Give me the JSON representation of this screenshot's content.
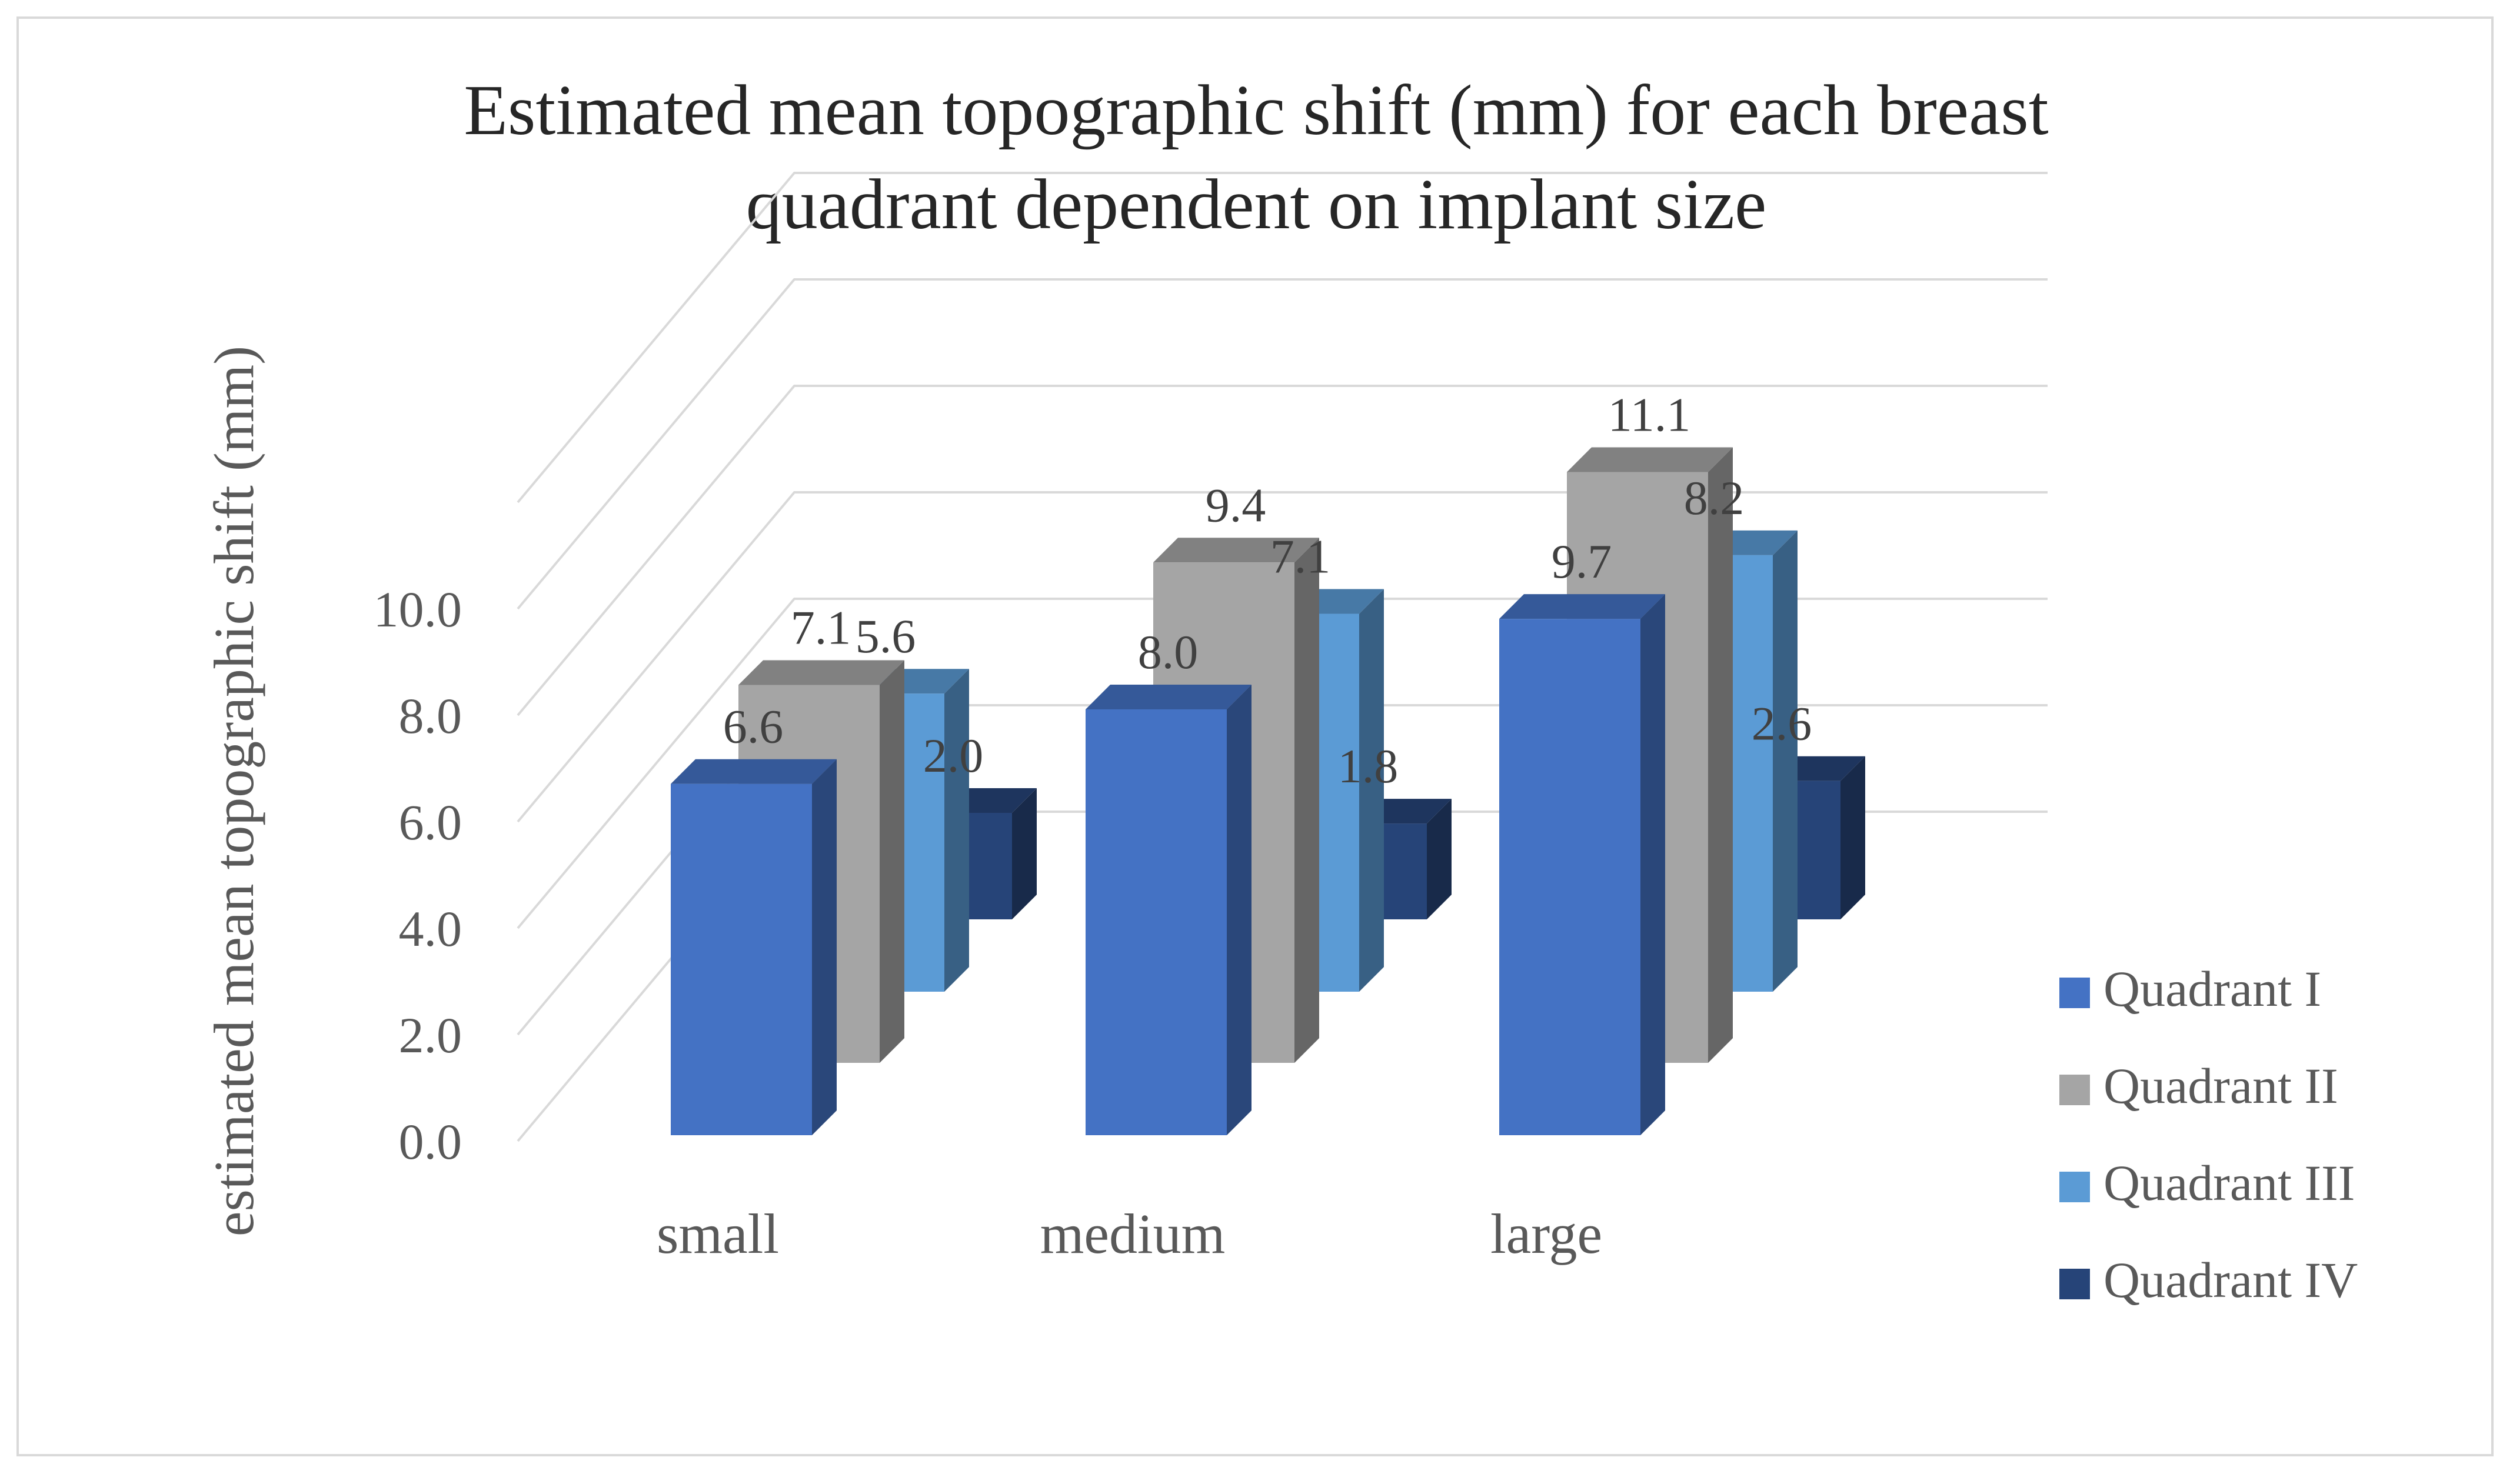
{
  "chart_data": {
    "type": "bar",
    "title": "Estimated mean topographic shift (mm) for each breast quadrant dependent on implant size",
    "title_lines": [
      "Estimated mean topographic shift (mm) for each breast",
      "quadrant dependent on implant size"
    ],
    "xlabel": "",
    "ylabel": "estimated mean topographic shift (mm)",
    "categories": [
      "small",
      "medium",
      "large"
    ],
    "series": [
      {
        "name": "Quadrant I",
        "values": [
          6.6,
          8.0,
          9.7
        ],
        "labels": [
          "6.6",
          "8.0",
          "9.7"
        ],
        "color": "#4472c4"
      },
      {
        "name": "Quadrant II",
        "values": [
          7.1,
          9.4,
          11.1
        ],
        "labels": [
          "7.1",
          "9.4",
          "11.1"
        ],
        "color": "#a5a5a5"
      },
      {
        "name": "Quadrant III",
        "values": [
          5.6,
          7.1,
          8.2
        ],
        "labels": [
          "5.6",
          "7.1",
          "8.2"
        ],
        "color": "#5b9bd5"
      },
      {
        "name": "Quadrant IV",
        "values": [
          2.0,
          1.8,
          2.6
        ],
        "labels": [
          "2.0",
          "1.8",
          "2.6"
        ],
        "color": "#264478"
      }
    ],
    "yticks": [
      "0.0",
      "2.0",
      "4.0",
      "6.0",
      "8.0",
      "10.0"
    ],
    "ylim": [
      0,
      14
    ],
    "grid": true,
    "legend_position": "right",
    "style": "3d-clustered-column"
  }
}
